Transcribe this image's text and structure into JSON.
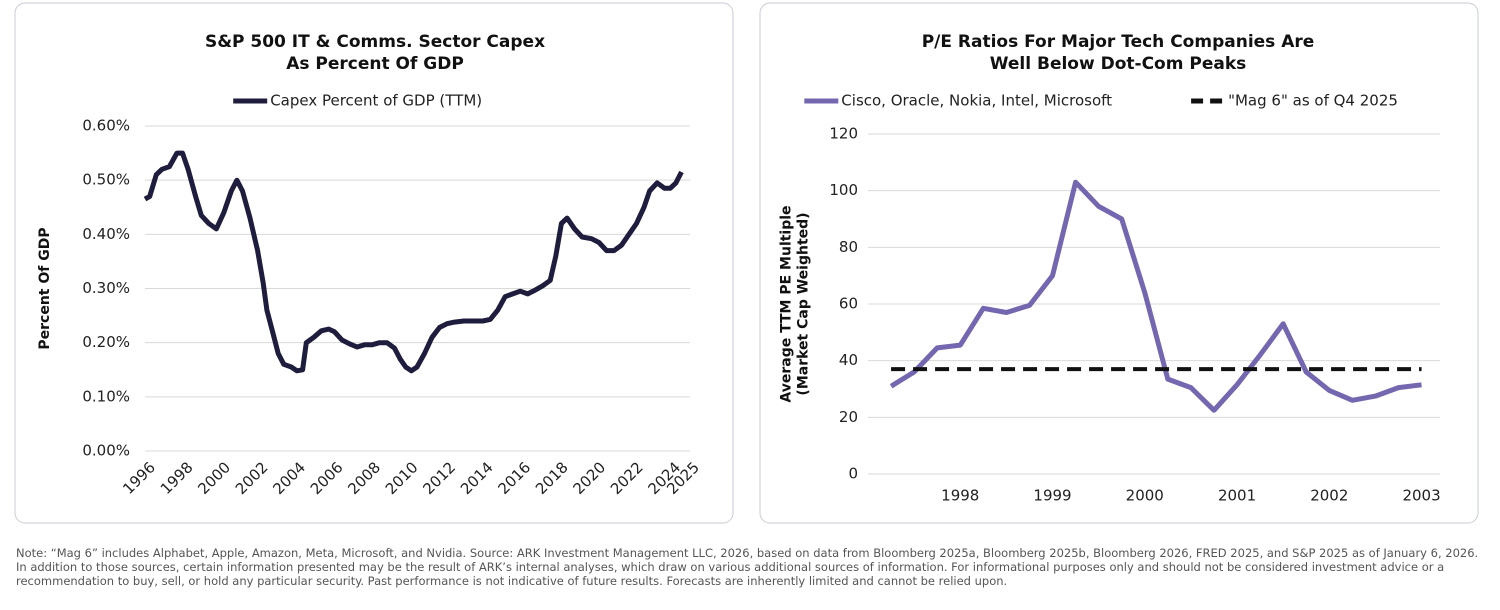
{
  "chart_data": [
    {
      "type": "line",
      "title": [
        "S&P 500 IT & Comms. Sector Capex",
        "As Percent Of GDP"
      ],
      "y_label": [
        "Percent Of GDP"
      ],
      "x": [
        1996.0,
        1996.25,
        1996.6,
        1996.9,
        1997.3,
        1997.7,
        1998.0,
        1998.3,
        1998.7,
        1999.0,
        1999.4,
        1999.8,
        2000.2,
        2000.6,
        2000.9,
        2001.2,
        2001.6,
        2002.0,
        2002.3,
        2002.5,
        2002.8,
        2003.1,
        2003.4,
        2003.8,
        2004.1,
        2004.4,
        2004.6,
        2005.0,
        2005.4,
        2005.8,
        2006.1,
        2006.5,
        2006.9,
        2007.3,
        2007.7,
        2008.1,
        2008.5,
        2008.9,
        2009.3,
        2009.6,
        2009.9,
        2010.2,
        2010.5,
        2010.9,
        2011.3,
        2011.7,
        2012.1,
        2012.5,
        2013.0,
        2013.5,
        2014.0,
        2014.4,
        2014.8,
        2015.2,
        2015.6,
        2016.0,
        2016.4,
        2016.8,
        2017.2,
        2017.6,
        2017.9,
        2018.2,
        2018.5,
        2018.9,
        2019.3,
        2019.8,
        2020.2,
        2020.6,
        2021.0,
        2021.4,
        2021.8,
        2022.2,
        2022.6,
        2022.9,
        2023.3,
        2023.7,
        2024.0,
        2024.3,
        2024.6
      ],
      "series": [
        {
          "name": "Capex Percent of GDP (TTM)",
          "color": "#1f1d3d",
          "values": [
            0.465,
            0.47,
            0.51,
            0.52,
            0.525,
            0.55,
            0.55,
            0.52,
            0.47,
            0.435,
            0.42,
            0.41,
            0.44,
            0.48,
            0.5,
            0.48,
            0.43,
            0.37,
            0.31,
            0.26,
            0.22,
            0.18,
            0.16,
            0.155,
            0.148,
            0.15,
            0.2,
            0.21,
            0.222,
            0.225,
            0.22,
            0.205,
            0.198,
            0.192,
            0.196,
            0.196,
            0.2,
            0.2,
            0.19,
            0.17,
            0.155,
            0.148,
            0.155,
            0.18,
            0.21,
            0.228,
            0.235,
            0.238,
            0.24,
            0.24,
            0.24,
            0.243,
            0.26,
            0.285,
            0.29,
            0.295,
            0.29,
            0.297,
            0.305,
            0.315,
            0.36,
            0.42,
            0.43,
            0.41,
            0.395,
            0.392,
            0.385,
            0.37,
            0.37,
            0.38,
            0.4,
            0.42,
            0.45,
            0.48,
            0.495,
            0.485,
            0.485,
            0.495,
            0.515
          ]
        }
      ],
      "xlim": [
        1996,
        2025
      ],
      "xticks": [
        1996,
        1998,
        2000,
        2002,
        2004,
        2006,
        2008,
        2010,
        2012,
        2014,
        2016,
        2018,
        2020,
        2022,
        2024,
        2025
      ],
      "ylim": [
        0,
        0.6
      ],
      "yticks": [
        {
          "value": 0,
          "label": "0.00%"
        },
        {
          "value": 0.1,
          "label": "0.10%"
        },
        {
          "value": 0.2,
          "label": "0.20%"
        },
        {
          "value": 0.3,
          "label": "0.30%"
        },
        {
          "value": 0.4,
          "label": "0.40%"
        },
        {
          "value": 0.5,
          "label": "0.50%"
        },
        {
          "value": 0.6,
          "label": "0.60%"
        }
      ],
      "grid": true
    },
    {
      "type": "line",
      "title": [
        "P/E Ratios For Major Tech Companies Are",
        "Well Below Dot-Com Peaks"
      ],
      "y_label": [
        "Average TTM PE Multiple",
        "(Market Cap Weighted)"
      ],
      "x": [
        1997.25,
        1997.5,
        1997.75,
        1998.0,
        1998.25,
        1998.5,
        1998.75,
        1999.0,
        1999.25,
        1999.5,
        1999.75,
        2000.0,
        2000.25,
        2000.5,
        2000.75,
        2001.0,
        2001.25,
        2001.5,
        2001.75,
        2002.0,
        2002.25,
        2002.5,
        2002.75,
        2003.0
      ],
      "series": [
        {
          "name": "Cisco, Oracle, Nokia, Intel, Microsoft",
          "color": "#7566b0",
          "values": [
            31,
            36,
            44.5,
            45.5,
            58.5,
            57,
            59.5,
            70,
            103,
            94.5,
            90,
            64,
            33.5,
            30.5,
            22.5,
            31.5,
            42,
            53,
            36,
            29.5,
            26,
            27.5,
            30.5,
            31.5
          ]
        },
        {
          "name": "\"Mag 6\" as of Q4 2025",
          "color": "#111111",
          "value": 37,
          "dashed": true
        }
      ],
      "xlim": [
        1997.0,
        2003.2
      ],
      "xticks": [
        1998,
        1999,
        2000,
        2001,
        2002,
        2003
      ],
      "ylim": [
        0,
        120
      ],
      "yticks": [
        0,
        20,
        40,
        60,
        80,
        100,
        120
      ],
      "grid": true
    }
  ],
  "note": "Note: “Mag 6” includes Alphabet, Apple, Amazon, Meta, Microsoft, and Nvidia. Source: ARK Investment Management LLC, 2026, based on data from Bloomberg 2025a, Bloomberg 2025b, Bloomberg 2026, FRED 2025, and S&P 2025 as of January 6, 2026. In addition to those sources, certain information presented may be the result of ARK’s internal analyses, which draw on various additional sources of information. For informational purposes only and should not be considered investment advice or a recommendation to buy, sell, or hold any particular security. Past performance is not indicative of future results. Forecasts are inherently limited and cannot be relied upon."
}
